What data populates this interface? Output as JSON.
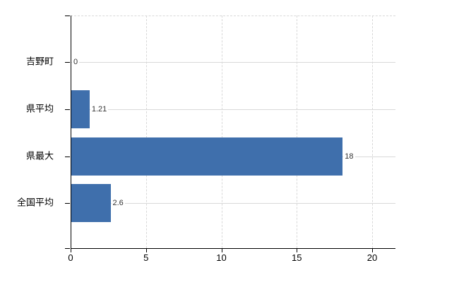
{
  "chart_data": {
    "type": "bar",
    "orientation": "horizontal",
    "title": "",
    "categories": [
      "吉野町",
      "県平均",
      "県最大",
      "全国平均"
    ],
    "values": [
      0,
      1.21,
      18,
      2.6
    ],
    "value_labels": [
      "0",
      "1.21",
      "18",
      "2.6"
    ],
    "x_ticks": [
      0,
      5,
      10,
      15,
      20
    ],
    "x_tick_labels": [
      "0",
      "5",
      "10",
      "15",
      "20"
    ],
    "xlim": [
      0,
      20
    ],
    "grid": true,
    "legend": false,
    "colors": {
      "bar": "#3f6fac",
      "grid_solid": "#d9d9d9",
      "grid_dashed": "#d8d8d8",
      "axis": "#000000",
      "value_label": "#333333",
      "tick_label": "#000000",
      "category_label": "#000000",
      "background": "#ffffff"
    }
  }
}
